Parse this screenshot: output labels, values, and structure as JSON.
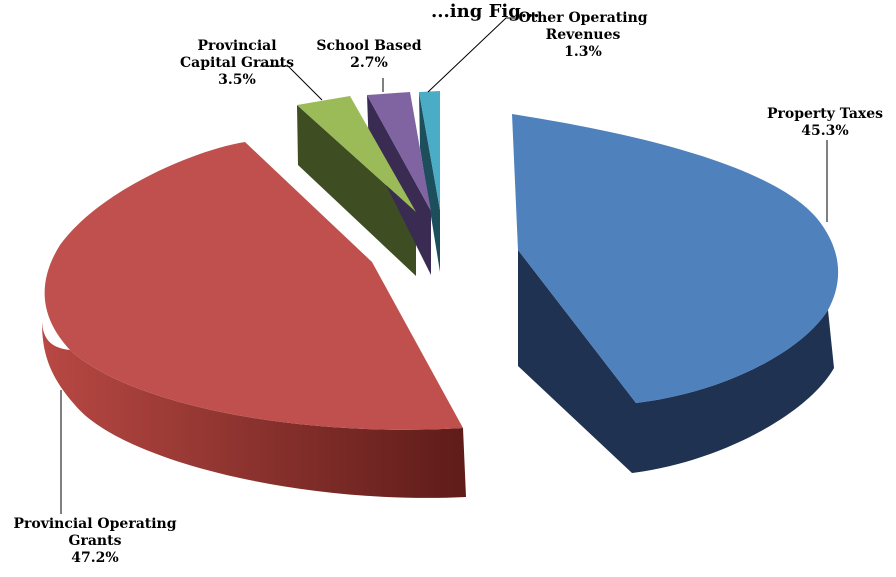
{
  "chart_data": {
    "type": "pie",
    "style": "3d-exploded",
    "title": "...ing Fig...",
    "series": [
      {
        "slices": [
          {
            "label_lines": [
              "Property Taxes"
            ],
            "percent_text": "45.3%",
            "value": 45.3,
            "color": "#4F81BD",
            "side_color": "#1F3251"
          },
          {
            "label_lines": [
              "Provincial Operating",
              "Grants"
            ],
            "percent_text": "47.2%",
            "value": 47.2,
            "color": "#C0504D",
            "side_color": "#6E2320"
          },
          {
            "label_lines": [
              "Provincial",
              "Capital Grants"
            ],
            "percent_text": "3.5%",
            "value": 3.5,
            "color": "#9BBB59",
            "side_color": "#3E4E22"
          },
          {
            "label_lines": [
              "School Based"
            ],
            "percent_text": "2.7%",
            "value": 2.7,
            "color": "#8064A2",
            "side_color": "#3A2B52"
          },
          {
            "label_lines": [
              "Other Operating",
              "Revenues"
            ],
            "percent_text": "1.3%",
            "value": 1.3,
            "color": "#4BACC6",
            "side_color": "#1D4E5C"
          }
        ]
      }
    ],
    "legend": "none",
    "labels": "outside-with-leader-lines"
  }
}
